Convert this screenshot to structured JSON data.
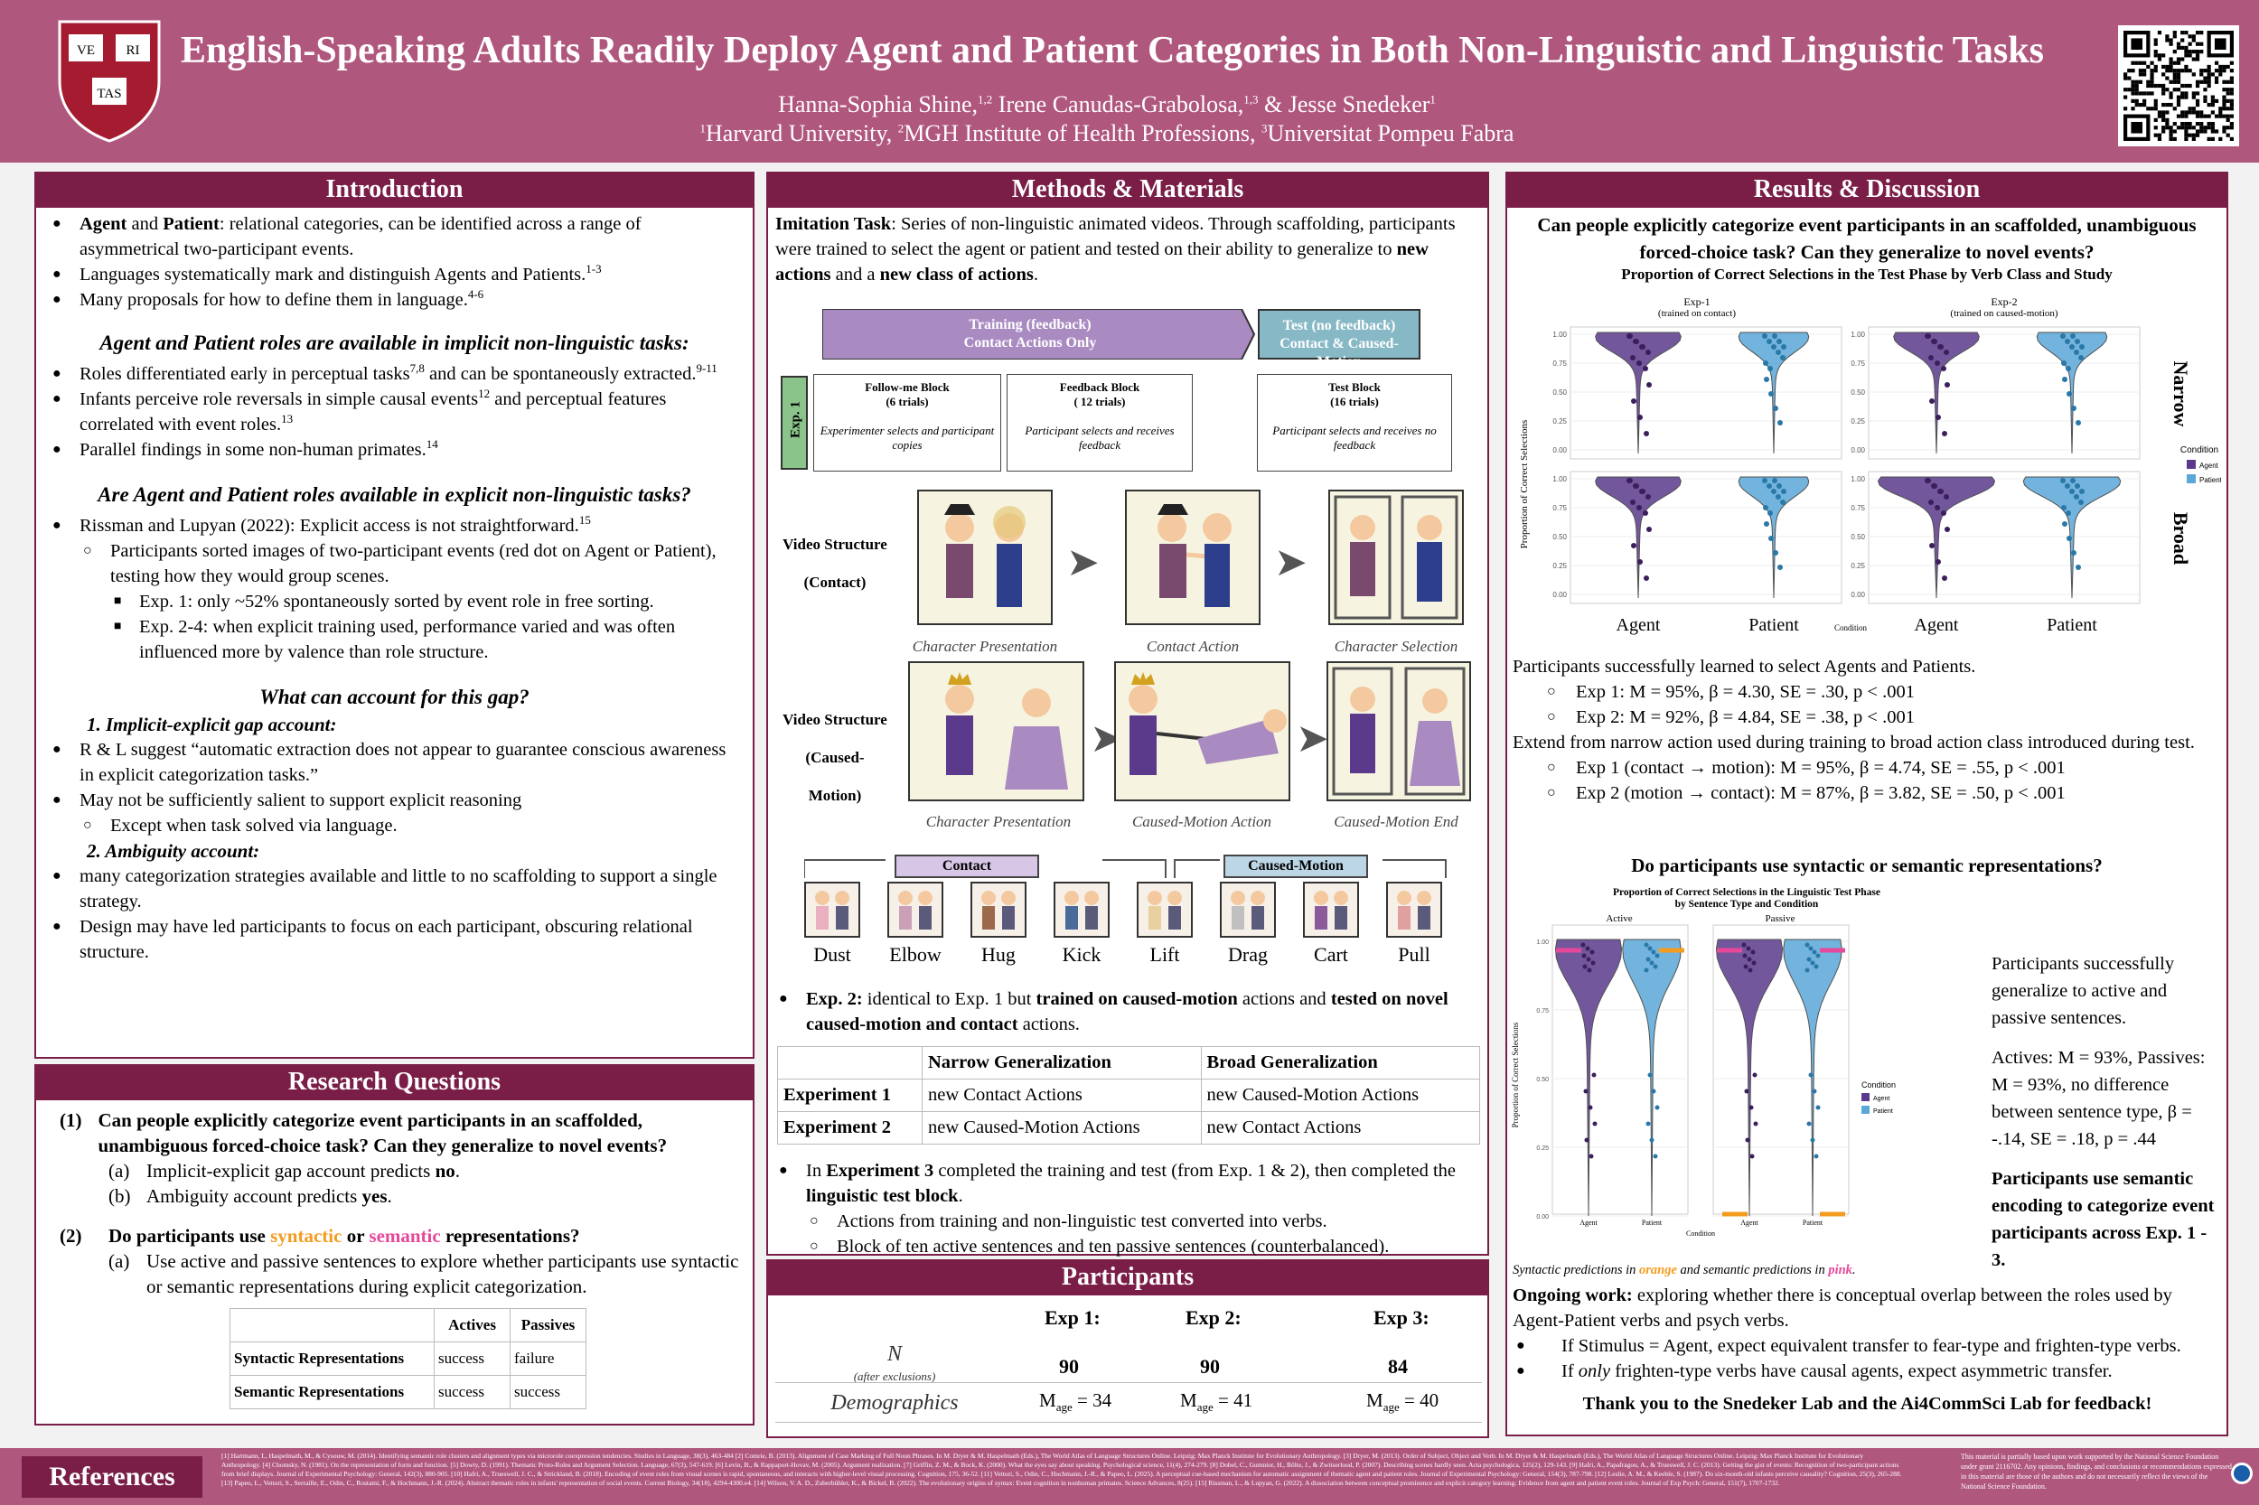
{
  "header": {
    "title": "English-Speaking Adults Readily Deploy Agent and Patient Categories in Both Non-Linguistic and Linguistic Tasks",
    "authors_line1": "Hanna-Sophia Shine,1,2 Irene Canudas-Grabolosa,1,3 & Jesse Snedeker1",
    "affiliations": "1Harvard University, 2MGH Institute of Health Professions, 3Universitat Pompeu Fabra",
    "shield_text": [
      "VE",
      "RI",
      "TAS"
    ]
  },
  "intro": {
    "heading": "Introduction",
    "b1_bold1": "Agent",
    "b1_and": " and ",
    "b1_bold2": "Patient",
    "b1_rest": ": relational categories, can be identified across a range of asymmetrical two-participant events.",
    "b2": "Languages systematically mark and distinguish Agents and Patients.",
    "b2_sup": "1-3",
    "b3": "Many proposals for how to define them in language.",
    "b3_sup": "4-6",
    "sub1": "Agent and Patient roles are available in implicit non-linguistic tasks:",
    "b4a": "Roles differentiated early in perceptual tasks",
    "b4_sup1": "7,8",
    "b4b": " and can be spontaneously extracted.",
    "b4_sup2": "9-11",
    "b5a": "Infants perceive role reversals in simple causal events",
    "b5_sup1": "12",
    "b5b": " and perceptual features correlated with event roles.",
    "b5_sup2": "13",
    "b6": "Parallel findings in some non-human primates.",
    "b6_sup": "14",
    "sub2": "Are Agent and Patient roles available in explicit non-linguistic tasks?",
    "b7": "Rissman and Lupyan (2022): Explicit access is not straightforward.",
    "b7_sup": "15",
    "o1": "Participants sorted images of two-participant events (red dot on Agent or Patient), testing how they would group scenes.",
    "s1": "Exp. 1: only ~52% spontaneously sorted by event role in free sorting.",
    "s2": "Exp. 2-4: when explicit training used, performance varied and was often influenced more by valence than role structure.",
    "sub3": "What can account for this gap?",
    "acc1": "1.   Implicit-explicit gap account:",
    "b8": "R & L suggest “automatic extraction does not appear to guarantee conscious awareness in explicit categorization tasks.”",
    "b9": "May not be sufficiently salient to support explicit reasoning",
    "o2": "Except when task solved via language.",
    "acc2": "2. Ambiguity account:",
    "b10": "many categorization strategies available and little to no scaffolding to support a single strategy.",
    "b11": "Design may have led participants to focus on each participant, obscuring relational structure."
  },
  "rq": {
    "heading": "Research Questions",
    "q1num": "(1)",
    "q1": "Can people explicitly categorize event participants in an scaffolded, unambiguous forced-choice task? Can they generalize to novel events?",
    "q1a_l": "(a)",
    "q1a": "Implicit-explicit gap account predicts ",
    "q1a_b": "no",
    "q1b_l": "(b)",
    "q1b": "Ambiguity account predicts ",
    "q1b_b": "yes",
    "q2num": "(2)",
    "q2a": "Do participants use ",
    "q2_syn": "syntactic",
    "q2_or": " or ",
    "q2_sem": "semantic",
    "q2b": " representations?",
    "q2a_l": "(a)",
    "q2a_text": "Use active and passive sentences to explore whether participants use syntactic or semantic representations during explicit categorization.",
    "table": {
      "h1": "Actives",
      "h2": "Passives",
      "r1": "Syntactic Representations",
      "r1a": "success",
      "r1b": "failure",
      "r2": "Semantic Representations",
      "r2a": "success",
      "r2b": "success"
    }
  },
  "methods": {
    "heading": "Methods & Materials",
    "p1_bold": "Imitation Task",
    "p1": ": Series of non-linguistic animated videos. Through scaffolding, participants were trained to select the agent or patient and tested on their ability to generalize to ",
    "p1_b2": "new actions",
    "p1_and": " and a ",
    "p1_b3": "new class of actions",
    "train": "Training (feedback)",
    "train2": "Contact Actions Only",
    "test": "Test (no feedback)",
    "test2": "Contact & Caused-Motion",
    "exp1": "Exp. 1",
    "blk1": "Follow-me Block",
    "blk1n": "(6 trials)",
    "blk1d": "Experimenter selects and participant copies",
    "blk2": "Feedback Block",
    "blk2n": "( 12 trials)",
    "blk2d": "Participant selects and receives feedback",
    "blk3": "Test Block",
    "blk3n": "(16 trials)",
    "blk3d": "Participant selects and receives no feedback",
    "vs1": "Video Structure",
    "vs1b": "(Contact)",
    "vs2": "Video Structure",
    "vs2b": "(Caused-Motion)",
    "c1": "Character Presentation",
    "c2": "Contact Action",
    "c3": "Character Selection",
    "c4": "Character Presentation",
    "c5": "Caused-Motion  Action",
    "c6": "Caused-Motion  End",
    "contact": "Contact",
    "caused": "Caused-Motion",
    "verbs": [
      "Dust",
      "Elbow",
      "Hug",
      "Kick",
      "Lift",
      "Drag",
      "Cart",
      "Pull"
    ],
    "e2_b": "Exp. 2:",
    "e2_a": " identical to Exp. 1 but ",
    "e2_b2": "trained on caused-motion",
    "e2_c": " actions and ",
    "e2_b3": "tested on novel caused-motion and contact",
    "e2_d": " actions.",
    "gtable": {
      "h1": "Narrow Generalization",
      "h2": "Broad Generalization",
      "r1": "Experiment 1",
      "r1a": "new Contact Actions",
      "r1b": "new Caused-Motion Actions",
      "r2": "Experiment 2",
      "r2a": "new Caused-Motion Actions",
      "r2b": "new Contact Actions"
    },
    "e3a": "In ",
    "e3b": "Experiment 3",
    "e3c": " completed the training and test (from Exp. 1 & 2), then completed the ",
    "e3d": "linguistic test block",
    "e3o1": "Actions from training and non-linguistic test converted into verbs.",
    "e3o2": "Block of ten active sentences and ten passive sentences (counterbalanced)."
  },
  "participants": {
    "heading": "Participants",
    "e1": "Exp 1:",
    "e2": "Exp 2:",
    "e3": "Exp 3:",
    "n": "N",
    "nsub": "(after exclusions)",
    "n1": "90",
    "n2": "90",
    "n3": "84",
    "demo": "Demographics",
    "m": "M",
    "age": "age",
    "m1": "= 34",
    "m2": "= 41",
    "m3": "= 40"
  },
  "results": {
    "heading": "Results & Discussion",
    "q1": "Can people explicitly categorize event participants in an scaffolded, unambiguous forced-choice task? Can they generalize to novel events?",
    "fig1title": "Proportion of Correct Selections in the Test Phase by Verb Class and Study",
    "exp1lab": "Exp-1",
    "exp1sub": "(trained on contact)",
    "exp2lab": "Exp-2",
    "exp2sub": "(trained on caused-motion)",
    "narrow": "Narrow",
    "broad": "Broad",
    "ylab": "Proportion of Correct Selections",
    "condition": "Condition",
    "agent": "Agent",
    "patient": "Patient",
    "ticks": [
      "1.00",
      "0.75",
      "0.50",
      "0.25",
      "0.00"
    ],
    "r1": "Participants successfully learned to select Agents and Patients.",
    "r1o1": "Exp 1: M = 95%, β = 4.30, SE = .30, p < .001",
    "r1o2": "Exp 2: M = 92%, β = 4.84, SE = .38, p < .001",
    "r2": "Extend from narrow action used during training to broad action class introduced during test.",
    "r2o1": "Exp 1 (contact → motion): M = 95%, β = 4.74, SE = .55, p < .001",
    "r2o2": "Exp 2 (motion → contact): M = 87%, β = 3.82, SE = .50, p < .001",
    "q2": "Do participants use syntactic or semantic representations?",
    "fig2title": "Proportion of Correct Selections in the Linguistic Test Phase",
    "fig2sub": "by Sentence Type and Condition",
    "active": "Active",
    "passive": "Passive",
    "ticks2": [
      "1.00",
      "0.75",
      "0.50",
      "0.25",
      "0.00"
    ],
    "g1": "Participants successfully generalize to active and passive sentences.",
    "g2": "Actives: M = 93%, Passives: M = 93%, no difference between sentence type,  β = -.14, SE = .18, p = .44",
    "g3": "Participants use semantic encoding to categorize event participants across Exp. 1 - 3.",
    "pred_a": "Syntactic predictions in ",
    "pred_or": "orange",
    "pred_b": " and semantic predictions in ",
    "pred_pk": "pink",
    "og_b": "Ongoing work:",
    "og": " exploring whether there is conceptual overlap between the roles used by Agent-Patient verbs and psych verbs.",
    "og1": "If Stimulus = Agent, expect equivalent transfer to fear-type and frighten-type verbs.",
    "og2a": "If ",
    "og2b": "only",
    "og2c": " frighten-type verbs have causal agents, expect asymmetric transfer.",
    "thanks": "Thank you to the Snedeker Lab and the Ai4CommSci Lab for feedback!"
  },
  "references": {
    "label": "References",
    "text": "[1] Hartmann, I., Haspelmath, M., & Cysouw, M. (2014). Identifying semantic role clusters and alignment types via microrole coexpression tendencies. Studies in Language, 38(3), 463-484 [2] Comrie, B. (2013). Alignment of Case Marking of Full Noun Phrases. In M. Dryer & M. Haspelmath (Eds.), The World Atlas of Language Structures Online. Leipzig: Max Planck Institute for Evolutionary Anthropology. [3] Dryer, M. (2013). Order of Subject, Object and Verb. In M. Dryer & M. Haspelmath (Eds.), The World Atlas of Language Structures Online. Leipzig: Max Planck Institute for Evolutionary Anthropology. [4] Chomsky, N. (1981). On the representation of form and function. [5] Dowty, D. (1991). Thematic Proto-Roles and Argument Selection. Language, 67(3), 547-619. [6] Levin, B., & Rappaport-Hovav, M. (2005). Argument realization. [7] Griffin, Z. M., & Bock, K. (2000). What the eyes say about speaking. Psychological science, 11(4), 274-279. [8] Dobel, C., Gumnior, H., Bölte, J., & Zwitserlood, P. (2007). Describing scenes hardly seen. Acta psychologica, 125(2), 129-143. [9] Hafri, A., Papafragou, A., & Trueswell, J. C. (2013). Getting the gist of events: Recognition of two-participant actions from brief displays. Journal of Experimental Psychology: General, 142(3), 880-905. [10] Hafri, A., Trueswell, J. C., & Strickland, B. (2018). Encoding of event roles from visual scenes is rapid, spontaneous, and interacts with higher-level visual processing. Cognition, 175, 36-52. [11] Vettori, S., Odin, C., Hochmann, J.-R., & Papeo, L. (2025). A perceptual cue-based mechanism for automatic assignment of thematic agent and patient roles. Journal of Experimental Psychology: General, 154(3), 787-798. [12] Leslie, A. M., & Keeble, S. (1987). Do six-month-old infants perceive causality? Cognition, 25(3), 265-288. [13] Papeo, L., Vettori, S., Serraille, E., Odin, C., Rostami, F., & Hochmann, J.-R. (2024). Abstract thematic roles in infants' representation of social events. Current Biology, 34(18), 4294-4300.e4. [14] Wilson, V. A. D., Zuberbühler, K., & Bickel, B. (2022). The evolutionary origins of syntax: Event cognition in nonhuman primates. Science Advances, 8(25). [15] Rissman, L., & Lupyan, G. (2022). A dissociation between conceptual prominence and explicit category learning: Evidence from agent and patient event roles. Journal of Exp Psych: General, 151(7), 1707-1732.",
    "funding": "This material is partially based upon work supported by the National Science Foundation under grant 2116702. Any opinions, findings, and conclusions or recommendations expressed in this material are those of the authors and do not necessarily reflect the views of the National Science Foundation."
  },
  "colors": {
    "header": "#b0577e",
    "dark": "#7a1e48",
    "agent": "#5b3a8c",
    "patient": "#5aa8d8",
    "orange": "#f39c1f",
    "pink": "#e6489a"
  }
}
